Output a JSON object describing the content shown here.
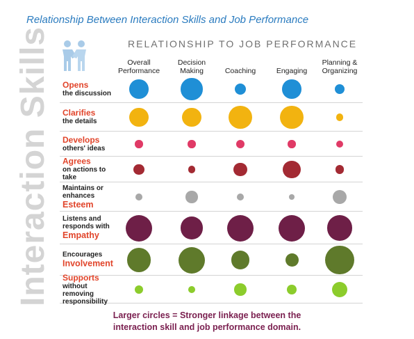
{
  "title": "Relationship Between Interaction Skills and Job Performance",
  "side_label": "Interaction Skills",
  "logo_icon": "two-people-shaking-hands-icon",
  "chart_data": {
    "type": "bubble-matrix",
    "header": "RELATIONSHIP TO JOB PERFORMANCE",
    "columns": [
      "Overall Performance",
      "Decision Making",
      "Coaching",
      "Engaging",
      "Planning & Organizing"
    ],
    "column_lines": [
      [
        "Overall",
        "Performance"
      ],
      [
        "Decision",
        "Making"
      ],
      [
        "Coaching"
      ],
      [
        "Engaging"
      ],
      [
        "Planning &",
        "Organizing"
      ]
    ],
    "rows": [
      {
        "name": "Opens the discussion",
        "pre": "",
        "emph": "Opens",
        "sub": "the discussion",
        "color": "#1f8fd6",
        "values": [
          0.72,
          0.82,
          0.42,
          0.72,
          0.38
        ]
      },
      {
        "name": "Clarifies the details",
        "pre": "",
        "emph": "Clarifies",
        "sub": "the details",
        "color": "#f2b310",
        "values": [
          0.72,
          0.72,
          0.88,
          0.88,
          0.28
        ]
      },
      {
        "name": "Develops others' ideas",
        "pre": "",
        "emph": "Develops",
        "sub": "others' ideas",
        "color": "#e03a66",
        "values": [
          0.3,
          0.3,
          0.34,
          0.3,
          0.28
        ]
      },
      {
        "name": "Agrees on actions to take",
        "pre": "",
        "emph": "Agrees",
        "sub": "on actions to take",
        "color": "#a32a33",
        "values": [
          0.4,
          0.28,
          0.52,
          0.66,
          0.34
        ]
      },
      {
        "name": "Maintains or enhances Esteem",
        "pre": "Maintains or enhances",
        "emph": "Esteem",
        "sub": "",
        "color": "#a8a8a8",
        "values": [
          0.26,
          0.46,
          0.26,
          0.2,
          0.55
        ]
      },
      {
        "name": "Listens and responds with Empathy",
        "pre": "Listens and responds with",
        "emph": "Empathy",
        "sub": "",
        "color": "#6e1f47",
        "values": [
          1.0,
          0.86,
          1.0,
          1.0,
          0.95
        ]
      },
      {
        "name": "Encourages Involvement",
        "pre": "Encourages",
        "emph": "Involvement",
        "sub": "",
        "color": "#5f7a2b",
        "values": [
          0.92,
          1.0,
          0.7,
          0.5,
          1.1
        ]
      },
      {
        "name": "Supports without removing responsibility",
        "pre": "",
        "emph": "Supports",
        "sub": "without removing responsibility",
        "color": "#8ccc2c",
        "values": [
          0.34,
          0.26,
          0.46,
          0.36,
          0.58
        ]
      }
    ],
    "size_meaning": "Larger circles = Stronger linkage between the interaction skill and job performance domain."
  },
  "footer_lines": [
    "Larger circles = Stronger linkage between the",
    "interaction skill and job performance domain."
  ]
}
